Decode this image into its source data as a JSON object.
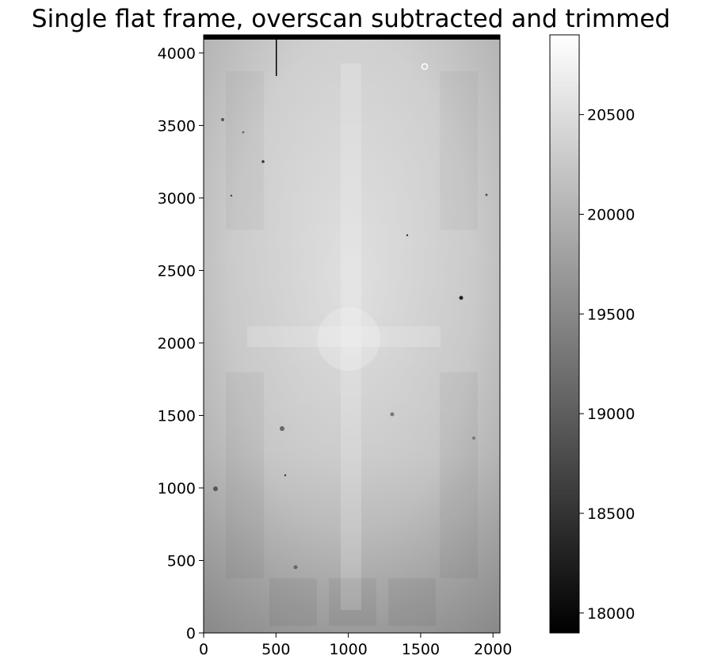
{
  "chart_data": {
    "type": "heatmap",
    "title": "Single flat frame, overscan subtracted and trimmed",
    "image_x_range": [
      0,
      2048
    ],
    "image_y_range": [
      0,
      4110
    ],
    "xlim": [
      0,
      2048
    ],
    "ylim": [
      0,
      4125
    ],
    "x_ticks": [
      0,
      500,
      1000,
      1500,
      2000
    ],
    "y_ticks": [
      0,
      500,
      1000,
      1500,
      2000,
      2500,
      3000,
      3500,
      4000
    ],
    "colormap": "gray",
    "colorbar": {
      "vmin": 17900,
      "vmax": 20900,
      "ticks": [
        18000,
        18500,
        19000,
        19500,
        20000,
        20500
      ]
    }
  }
}
